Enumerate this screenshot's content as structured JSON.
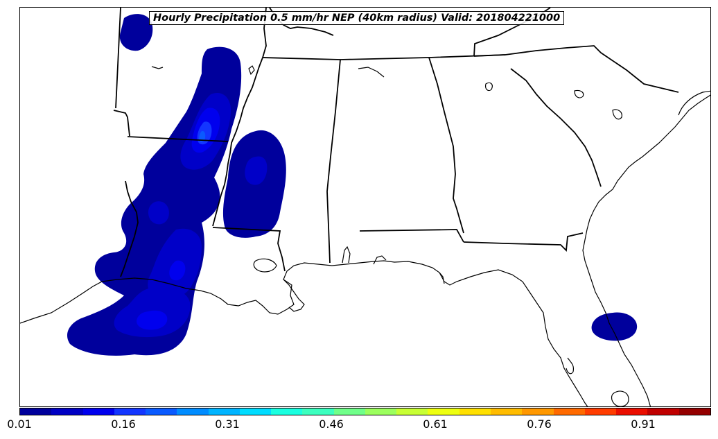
{
  "title": "Hourly Precipitation 0.5 mm/hr NEP (40km radius) Valid: 201804221000",
  "colorbar": {
    "colors": [
      "#00009c",
      "#0000c4",
      "#0000ee",
      "#1336ff",
      "#0a5aff",
      "#008cff",
      "#00b4ff",
      "#00dcff",
      "#1affe0",
      "#3cffbf",
      "#70ff8a",
      "#9cff5e",
      "#c8ff34",
      "#eeff10",
      "#ffe000",
      "#ffbc00",
      "#ff9800",
      "#ff6a00",
      "#ff3c00",
      "#ea0e00",
      "#c00000",
      "#940000"
    ],
    "tick_labels": [
      "0.01",
      "0.16",
      "0.31",
      "0.46",
      "0.61",
      "0.76",
      "0.91"
    ],
    "min": 0.01,
    "max": 1.0
  }
}
